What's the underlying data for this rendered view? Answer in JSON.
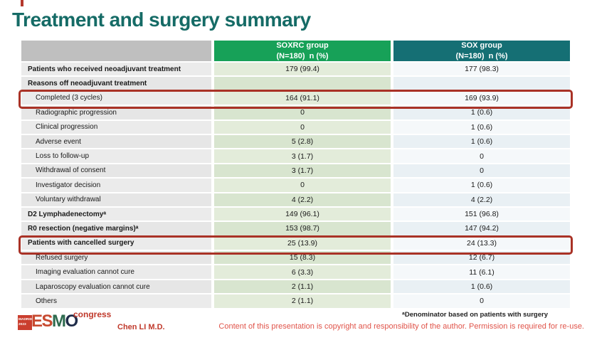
{
  "slide": {
    "title": "Treatment and surgery summary"
  },
  "table": {
    "columns": [
      {
        "name": "SOXRC group",
        "subtitle": "(N=180)  n (%)",
        "header_bg": "#17a158"
      },
      {
        "name": "SOX group",
        "subtitle": "(N=180)  n (%)",
        "header_bg": "#156f74"
      }
    ],
    "rows": [
      {
        "label": "Patients who received neoadjuvant treatment",
        "soxrc": "179 (99.4)",
        "sox": "177 (98.3)",
        "bold": true,
        "indent": false,
        "highlight": false
      },
      {
        "label": "Reasons off neoadjuvant treatment",
        "soxrc": "",
        "sox": "",
        "bold": true,
        "indent": false,
        "highlight": false
      },
      {
        "label": "Completed (3 cycles)",
        "soxrc": "164 (91.1)",
        "sox": "169 (93.9)",
        "bold": false,
        "indent": true,
        "highlight": true
      },
      {
        "label": "Radiographic progression",
        "soxrc": "0",
        "sox": "1 (0.6)",
        "bold": false,
        "indent": true,
        "highlight": false
      },
      {
        "label": "Clinical progression",
        "soxrc": "0",
        "sox": "1 (0.6)",
        "bold": false,
        "indent": true,
        "highlight": false
      },
      {
        "label": "Adverse event",
        "soxrc": "5 (2.8)",
        "sox": "1 (0.6)",
        "bold": false,
        "indent": true,
        "highlight": false
      },
      {
        "label": "Loss to follow-up",
        "soxrc": "3 (1.7)",
        "sox": "0",
        "bold": false,
        "indent": true,
        "highlight": false
      },
      {
        "label": "Withdrawal of consent",
        "soxrc": "3 (1.7)",
        "sox": "0",
        "bold": false,
        "indent": true,
        "highlight": false
      },
      {
        "label": "Investigator decision",
        "soxrc": "0",
        "sox": "1 (0.6)",
        "bold": false,
        "indent": true,
        "highlight": false
      },
      {
        "label": "Voluntary withdrawal",
        "soxrc": "4 (2.2)",
        "sox": "4 (2.2)",
        "bold": false,
        "indent": true,
        "highlight": false
      },
      {
        "label": "D2 Lymphadenectomyᵃ",
        "soxrc": "149 (96.1)",
        "sox": "151 (96.8)",
        "bold": true,
        "indent": false,
        "highlight": false
      },
      {
        "label": "R0 resection (negative margins)ᵃ",
        "soxrc": "153 (98.7)",
        "sox": "147 (94.2)",
        "bold": true,
        "indent": false,
        "highlight": false
      },
      {
        "label": "Patients with cancelled surgery",
        "soxrc": "25 (13.9)",
        "sox": "24 (13.3)",
        "bold": true,
        "indent": false,
        "highlight": true
      },
      {
        "label": "Refused surgery",
        "soxrc": "15 (8.3)",
        "sox": "12 (6.7)",
        "bold": false,
        "indent": true,
        "highlight": false
      },
      {
        "label": "Imaging evaluation cannot cure",
        "soxrc": "6 (3.3)",
        "sox": "11 (6.1)",
        "bold": false,
        "indent": true,
        "highlight": false
      },
      {
        "label": "Laparoscopy evaluation cannot cure",
        "soxrc": "2 (1.1)",
        "sox": "1 (0.6)",
        "bold": false,
        "indent": true,
        "highlight": false
      },
      {
        "label": "Others",
        "soxrc": "2 (1.1)",
        "sox": "0",
        "bold": false,
        "indent": true,
        "highlight": false
      }
    ]
  },
  "footnote": "ᵃDenominator based on patients with surgery",
  "footer": {
    "presenter": "Chen LI M.D.",
    "copyright": "Content of this presentation is copyright and responsibility of the author.  Permission is required for re-use.",
    "logo": {
      "city": "MADRID.",
      "year": "2023",
      "name_e": "E",
      "name_s": "S",
      "name_m": "M",
      "name_o": "O",
      "congress": "congress"
    }
  },
  "highlight_color": "#a93226"
}
